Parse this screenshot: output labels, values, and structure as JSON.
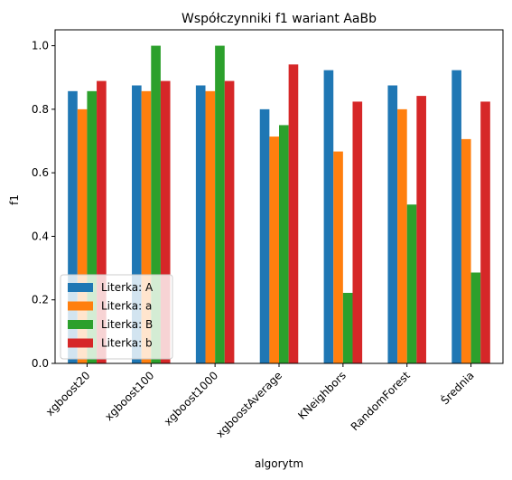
{
  "chart_data": {
    "type": "bar",
    "title": "Współczynniki f1 wariant AaBb",
    "xlabel": "algorytm",
    "ylabel": "f1",
    "ylim": [
      0,
      1.05
    ],
    "yticks": [
      "0.0",
      "0.2",
      "0.4",
      "0.6",
      "0.8",
      "1.0"
    ],
    "categories": [
      "xgboost20",
      "xgboost100",
      "xgboost1000",
      "xgboostAverage",
      "KNeighbors",
      "RandomForest",
      "Średnia"
    ],
    "series": [
      {
        "name": "Literka: A",
        "color": "#1f77b4",
        "values": [
          0.857,
          0.875,
          0.875,
          0.8,
          0.923,
          0.875,
          0.923
        ]
      },
      {
        "name": "Literka: a",
        "color": "#ff7f0e",
        "values": [
          0.8,
          0.857,
          0.857,
          0.714,
          0.667,
          0.8,
          0.706
        ]
      },
      {
        "name": "Literka: B",
        "color": "#2ca02c",
        "values": [
          0.857,
          1.0,
          1.0,
          0.75,
          0.222,
          0.5,
          0.286
        ]
      },
      {
        "name": "Literka: b",
        "color": "#d62728",
        "values": [
          0.889,
          0.889,
          0.889,
          0.941,
          0.824,
          0.842,
          0.824
        ]
      }
    ],
    "legend_position": "lower-left",
    "grid": false
  }
}
